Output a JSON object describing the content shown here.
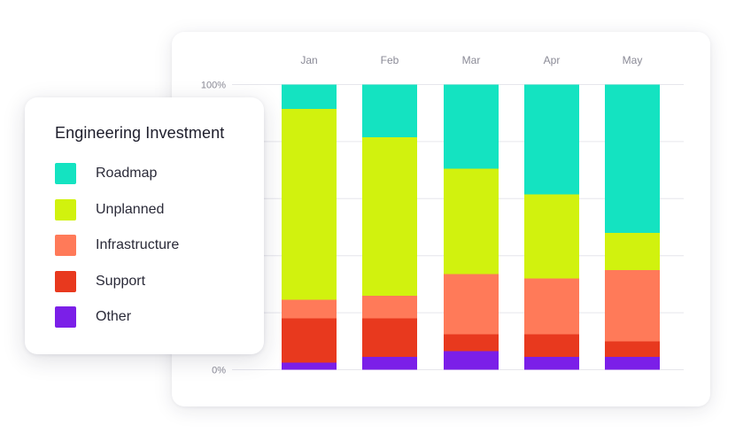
{
  "chart_data": {
    "type": "bar",
    "stacked": true,
    "title": "Engineering Investment",
    "categories": [
      "Jan",
      "Feb",
      "Mar",
      "Apr",
      "May"
    ],
    "y_ticks": [
      "100%",
      "0%"
    ],
    "ylim": [
      0,
      100
    ],
    "grid": true,
    "legend_position": "left",
    "series": [
      {
        "name": "Other",
        "color": "#7B1FE8",
        "values": [
          2.5,
          4.5,
          6.5,
          4.5,
          4.5
        ]
      },
      {
        "name": "Support",
        "color": "#E8391E",
        "values": [
          15.5,
          13.5,
          6,
          8,
          5.5
        ]
      },
      {
        "name": "Infrastructure",
        "color": "#FF7A59",
        "values": [
          6.5,
          8,
          21,
          19.5,
          25
        ]
      },
      {
        "name": "Unplanned",
        "color": "#D1F20E",
        "values": [
          67,
          55.5,
          37,
          29.5,
          13
        ]
      },
      {
        "name": "Roadmap",
        "color": "#14E3C1",
        "values": [
          8.5,
          18.5,
          29.5,
          38.5,
          52
        ]
      }
    ],
    "legend_order": [
      "Roadmap",
      "Unplanned",
      "Infrastructure",
      "Support",
      "Other"
    ]
  }
}
